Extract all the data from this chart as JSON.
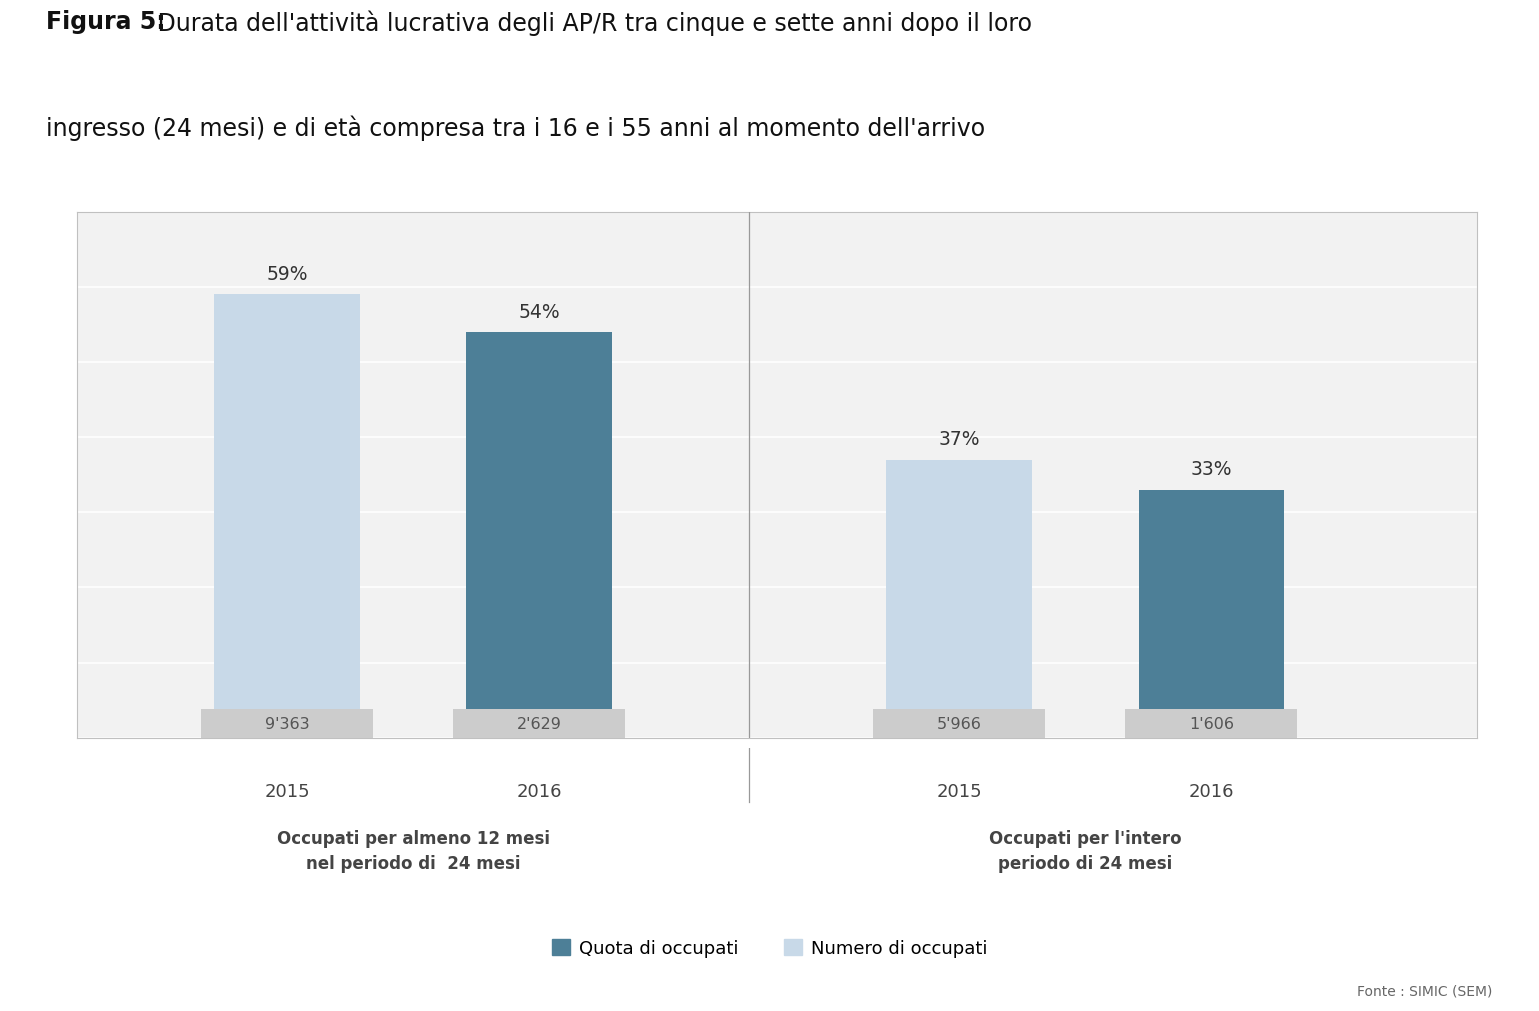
{
  "title_bold": "Figura 5:",
  "title_rest": " Durata dell'attività lucrativa degli AP/R tra cinque e sette anni dopo il loro\ningresso (24 mesi) e di età compresa tra i 16 e i 55 anni al momento dell'arrivo",
  "groups": [
    {
      "label": "Occupati per almeno 12 mesi\nnel periodo di  24 mesi",
      "bars": [
        {
          "year": "2015",
          "pct": 59,
          "n": "9'363",
          "color_pct": "#c8d9e8",
          "color_n": "#cacaca"
        },
        {
          "year": "2016",
          "pct": 54,
          "n": "2'629",
          "color_pct": "#4d7f97",
          "color_n": "#cacaca"
        }
      ]
    },
    {
      "label": "Occupati per l'intero\nperiodo di 24 mesi",
      "bars": [
        {
          "year": "2015",
          "pct": 37,
          "n": "5'966",
          "color_pct": "#c8d9e8",
          "color_n": "#cacaca"
        },
        {
          "year": "2016",
          "pct": 33,
          "n": "1'606",
          "color_pct": "#4d7f97",
          "color_n": "#cacaca"
        }
      ]
    }
  ],
  "ylim": [
    0,
    70
  ],
  "yticks": [
    0,
    10,
    20,
    30,
    40,
    50,
    60,
    70
  ],
  "legend_quota": "Quota di occupati",
  "legend_numero": "Numero di occupati",
  "legend_quota_color": "#4d7f97",
  "legend_numero_color": "#c8d9e8",
  "source": "Fonte : SIMIC (SEM)",
  "background_chart": "#f2f2f2",
  "grid_color": "#ffffff",
  "divider_color": "#999999",
  "bar_width": 0.52,
  "n_label_bg": "#cccccc",
  "n_label_text": "#555555",
  "pct_label_color": "#333333",
  "year_label_color": "#444444",
  "group_label_color": "#444444"
}
